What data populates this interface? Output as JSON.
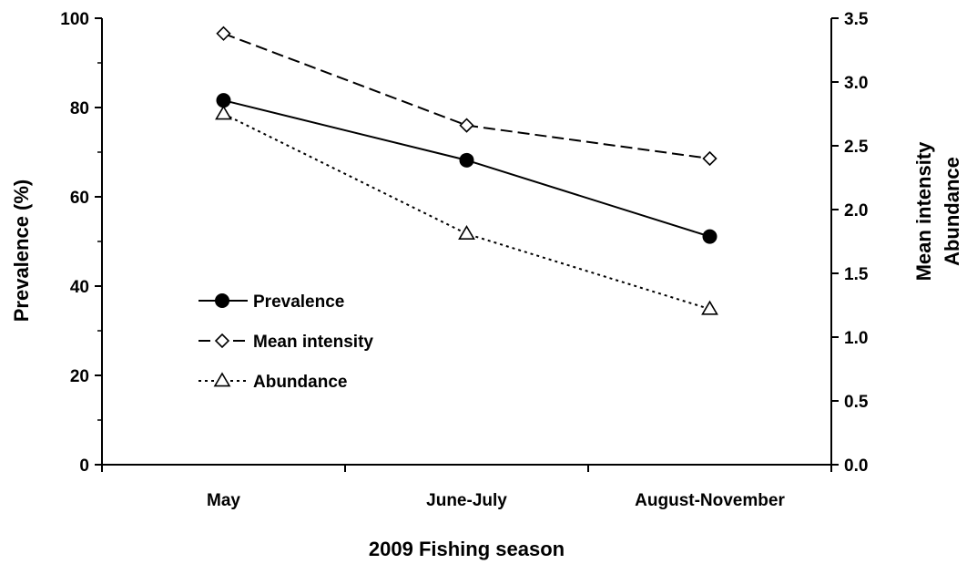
{
  "chart_data": {
    "type": "line",
    "categories": [
      "May",
      "June-July",
      "August-November"
    ],
    "xlabel": "2009 Fishing season",
    "ylabel": "Prevalence (%)",
    "ylabel_right": [
      "Mean intensity",
      "Abundance"
    ],
    "ylim": [
      0,
      100
    ],
    "ylim_right": [
      0,
      3.5
    ],
    "yticks": [
      "0",
      "20",
      "40",
      "60",
      "80",
      "100"
    ],
    "yticks_right": [
      "0.0",
      "0.5",
      "1.0",
      "1.5",
      "2.0",
      "2.5",
      "3.0",
      "3.5"
    ],
    "grid": false,
    "legend_position": "center-left",
    "series": [
      {
        "name": "Prevalence",
        "axis": "left",
        "values": [
          81.6,
          68.2,
          51.1
        ],
        "marker": "filled-circle",
        "line_style": "solid",
        "color": "#000000"
      },
      {
        "name": "Mean intensity",
        "axis": "right",
        "values": [
          3.38,
          2.66,
          2.4
        ],
        "marker": "open-diamond",
        "line_style": "dashed",
        "color": "#000000"
      },
      {
        "name": "Abundance",
        "axis": "right",
        "values": [
          2.75,
          1.81,
          1.22
        ],
        "marker": "open-triangle",
        "line_style": "dotted",
        "color": "#000000"
      }
    ]
  }
}
